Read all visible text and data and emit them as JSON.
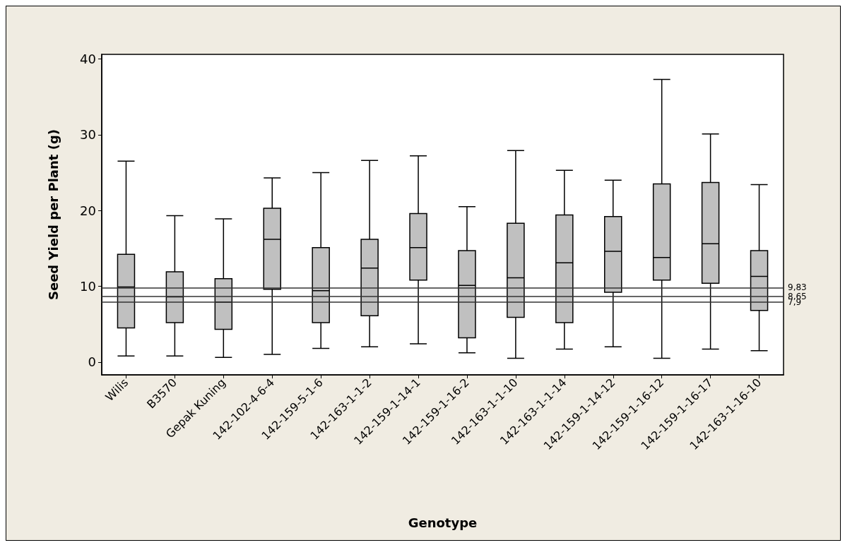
{
  "chart_data": {
    "type": "box",
    "xlabel": "Genotype",
    "ylabel": "Seed Yield per Plant (g)",
    "categories": [
      "Wilis",
      "B3570",
      "Gepak Kuning",
      "142-102-4-6-4",
      "142-159-5-1-6",
      "142-163-1-1-2",
      "142-159-1-14-1",
      "142-159-1-16-2",
      "142-163-1-1-10",
      "142-163-1-1-14",
      "142-159-1-14-12",
      "142-159-1-16-12",
      "142-159-1-16-17",
      "142-163-1-16-10"
    ],
    "color": "#c0c0c0",
    "boxes": [
      {
        "low": 0.8,
        "q1": 4.5,
        "median": 9.9,
        "q3": 14.2,
        "high": 26.5
      },
      {
        "low": 0.8,
        "q1": 5.2,
        "median": 8.6,
        "q3": 11.9,
        "high": 19.3
      },
      {
        "low": 0.6,
        "q1": 4.3,
        "median": 7.9,
        "q3": 11.0,
        "high": 18.9
      },
      {
        "low": 1.0,
        "q1": 9.6,
        "median": 16.2,
        "q3": 20.3,
        "high": 24.3
      },
      {
        "low": 1.8,
        "q1": 5.2,
        "median": 9.4,
        "q3": 15.1,
        "high": 25.0
      },
      {
        "low": 2.0,
        "q1": 6.1,
        "median": 12.4,
        "q3": 16.2,
        "high": 26.6
      },
      {
        "low": 2.4,
        "q1": 10.8,
        "median": 15.1,
        "q3": 19.6,
        "high": 27.2
      },
      {
        "low": 1.2,
        "q1": 3.2,
        "median": 10.1,
        "q3": 14.7,
        "high": 20.5
      },
      {
        "low": 0.5,
        "q1": 5.9,
        "median": 11.1,
        "q3": 18.3,
        "high": 27.9
      },
      {
        "low": 1.7,
        "q1": 5.2,
        "median": 13.1,
        "q3": 19.4,
        "high": 25.3
      },
      {
        "low": 2.0,
        "q1": 9.2,
        "median": 14.6,
        "q3": 19.2,
        "high": 24.0
      },
      {
        "low": 0.5,
        "q1": 10.8,
        "median": 13.8,
        "q3": 23.5,
        "high": 37.3
      },
      {
        "low": 1.7,
        "q1": 10.4,
        "median": 15.6,
        "q3": 23.7,
        "high": 30.1
      },
      {
        "low": 1.5,
        "q1": 6.8,
        "median": 11.3,
        "q3": 14.7,
        "high": 23.4
      }
    ],
    "ylim": [
      -1.7,
      40.6
    ],
    "yticks": [
      0,
      10,
      20,
      30,
      40
    ],
    "grid": false,
    "ref_lines": [
      {
        "axis": "y",
        "value": 9.83,
        "label": "9,83",
        "color": "#333333"
      },
      {
        "axis": "y",
        "value": 8.65,
        "label": "8,65",
        "color": "#333333"
      },
      {
        "axis": "y",
        "value": 7.9,
        "label": "7,9",
        "color": "#333333"
      }
    ]
  }
}
